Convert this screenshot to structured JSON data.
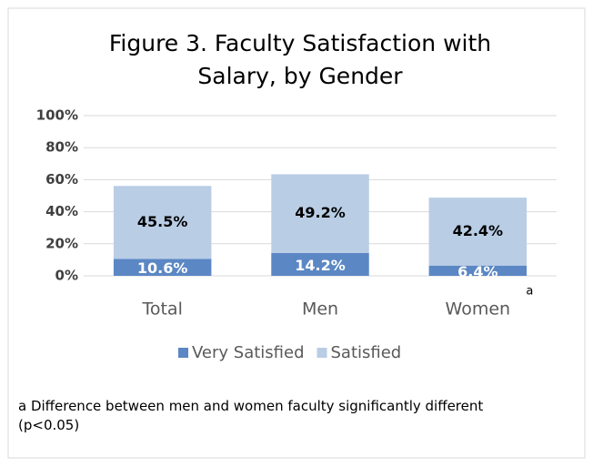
{
  "chart_data": {
    "type": "stacked_bar",
    "title": "Figure 3. Faculty Satisfaction with Salary, by Gender",
    "categories": [
      "Total",
      "Men",
      "Women"
    ],
    "series": [
      {
        "name": "Very Satisfied",
        "color": "#5b87c4",
        "values": [
          10.6,
          14.2,
          6.4
        ],
        "value_labels": [
          "10.6%",
          "14.2%",
          "6.4%"
        ]
      },
      {
        "name": "Satisfied",
        "color": "#b9cde5",
        "values": [
          45.5,
          49.2,
          42.4
        ],
        "value_labels": [
          "45.5%",
          "49.2%",
          "42.4%"
        ]
      }
    ],
    "ylim": [
      0,
      100
    ],
    "yticks": [
      {
        "value": 0,
        "label": "0%"
      },
      {
        "value": 20,
        "label": "20%"
      },
      {
        "value": 40,
        "label": "40%"
      },
      {
        "value": 60,
        "label": "60%"
      },
      {
        "value": 80,
        "label": "80%"
      },
      {
        "value": 100,
        "label": "100%"
      }
    ],
    "grid": true,
    "legend": "bottom",
    "annotation": "a",
    "footnote": "a Difference between men and women faculty significantly different (p<0.05)"
  }
}
